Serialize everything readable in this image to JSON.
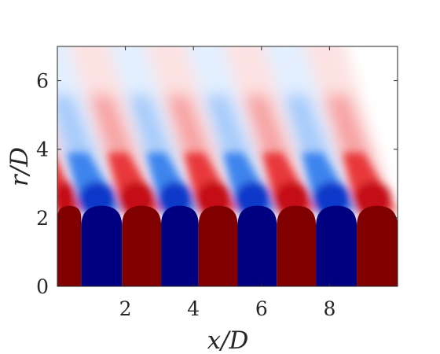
{
  "chart_data": {
    "type": "heatmap",
    "xlabel": "x/D",
    "ylabel": "r/D",
    "xlim": [
      0,
      10
    ],
    "ylim": [
      0,
      7
    ],
    "x_ticks": [
      "2",
      "4",
      "6",
      "8"
    ],
    "y_ticks": [
      "0",
      "2",
      "4",
      "6"
    ],
    "grid": false,
    "colormap": {
      "negative": "#000080",
      "zero": "#ffffff",
      "positive": "#800000"
    },
    "core_bands": [
      {
        "x_start": 0.0,
        "x_end": 0.7,
        "sign": 1
      },
      {
        "x_start": 0.7,
        "x_end": 1.9,
        "sign": -1
      },
      {
        "x_start": 1.9,
        "x_end": 3.05,
        "sign": 1
      },
      {
        "x_start": 3.05,
        "x_end": 4.15,
        "sign": -1
      },
      {
        "x_start": 4.15,
        "x_end": 5.3,
        "sign": 1
      },
      {
        "x_start": 5.3,
        "x_end": 6.45,
        "sign": -1
      },
      {
        "x_start": 6.45,
        "x_end": 7.6,
        "sign": 1
      },
      {
        "x_start": 7.6,
        "x_end": 8.8,
        "sign": -1
      },
      {
        "x_start": 8.8,
        "x_end": 10.0,
        "sign": 1
      }
    ]
  }
}
